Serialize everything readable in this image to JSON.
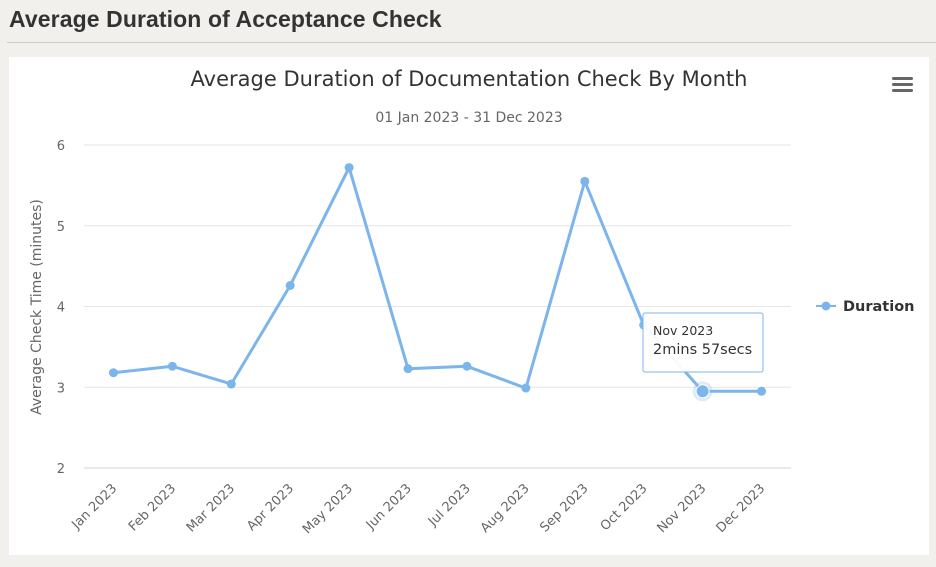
{
  "page": {
    "title": "Average Duration of Acceptance Check"
  },
  "chart_data": {
    "type": "line",
    "title": "Average Duration of Documentation Check By Month",
    "subtitle": "01 Jan 2023 - 31 Dec 2023",
    "ylabel": "Average Check Time (minutes)",
    "xlabel": "",
    "categories": [
      "Jan 2023",
      "Feb 2023",
      "Mar 2023",
      "Apr 2023",
      "May 2023",
      "Jun 2023",
      "Jul 2023",
      "Aug 2023",
      "Sep 2023",
      "Oct 2023",
      "Nov 2023",
      "Dec 2023"
    ],
    "series": [
      {
        "name": "Duration",
        "color": "#7cb5ec",
        "values": [
          3.18,
          3.26,
          3.04,
          4.26,
          5.72,
          3.23,
          3.26,
          2.99,
          5.55,
          3.77,
          2.95,
          2.95
        ]
      }
    ],
    "ylim": [
      2,
      6
    ],
    "yticks": [
      2,
      3,
      4,
      5,
      6
    ],
    "grid": true,
    "legend": "right",
    "tooltip": {
      "category_index": 10,
      "label": "Nov 2023",
      "value_text": "2mins 57secs"
    }
  },
  "menu": {
    "icon": "hamburger-menu-icon"
  }
}
